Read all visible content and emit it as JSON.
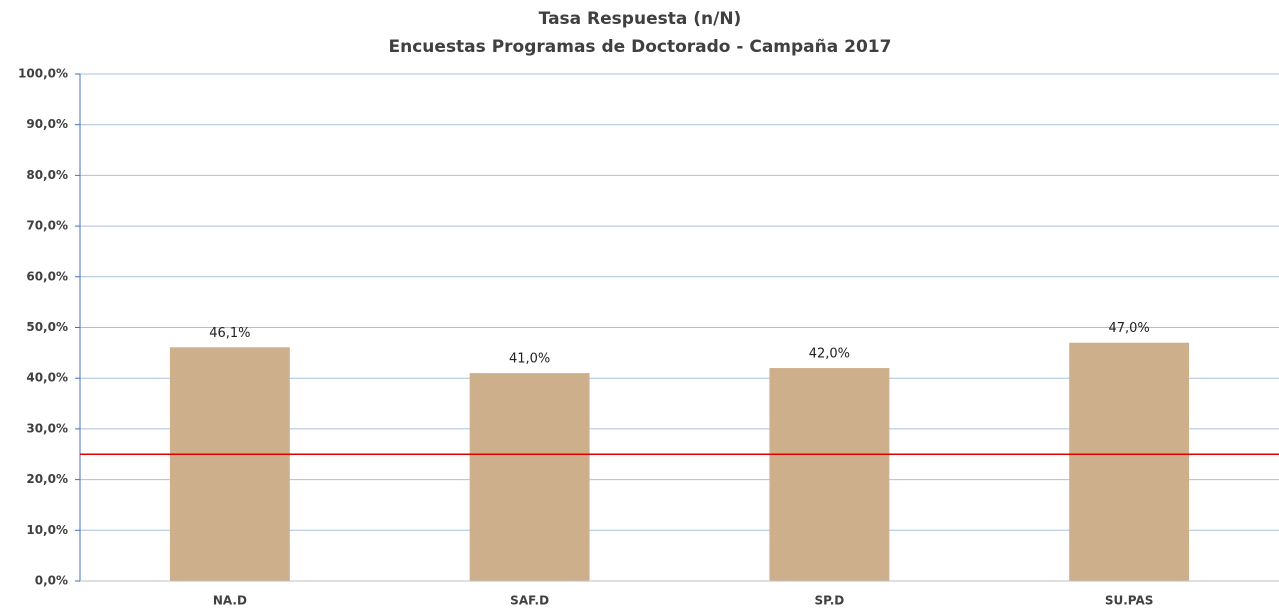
{
  "chart_data": {
    "type": "bar",
    "title": "Tasa Respuesta (n/N)",
    "subtitle": "Encuestas Programas de Doctorado - Campaña 2017",
    "categories": [
      "NA.D",
      "SAF.D",
      "SP.D",
      "SU.PAS"
    ],
    "values": [
      46.1,
      41.0,
      42.0,
      47.0
    ],
    "value_labels": [
      "46,1%",
      "41,0%",
      "42,0%",
      "47,0%"
    ],
    "color": "#cdb08b",
    "reference_line": 25,
    "reference_color": "#e00000",
    "ylim": [
      0,
      100
    ],
    "yticks": [
      {
        "value": 0,
        "label": "0,0%"
      },
      {
        "value": 10,
        "label": "10,0%"
      },
      {
        "value": 20,
        "label": "20,0%"
      },
      {
        "value": 30,
        "label": "30,0%"
      },
      {
        "value": 40,
        "label": "40,0%"
      },
      {
        "value": 50,
        "label": "50,0%"
      },
      {
        "value": 60,
        "label": "60,0%"
      },
      {
        "value": 70,
        "label": "70,0%"
      },
      {
        "value": 80,
        "label": "80,0%"
      },
      {
        "value": 90,
        "label": "90,0%"
      },
      {
        "value": 100,
        "label": "100,0%"
      }
    ],
    "grid": true,
    "grid_color": "#a9c0dc"
  }
}
